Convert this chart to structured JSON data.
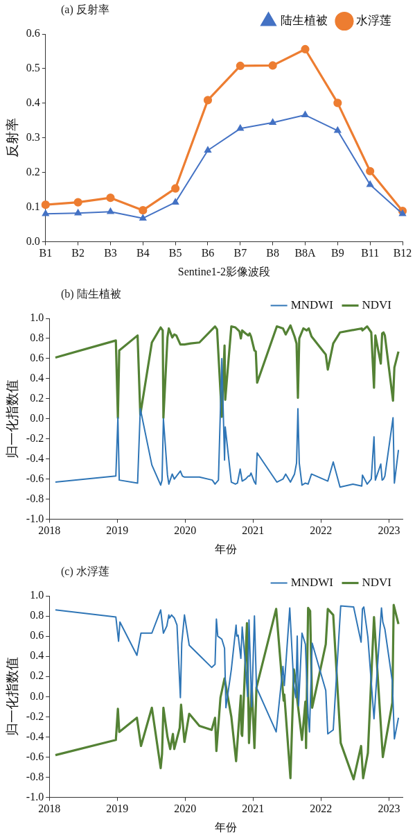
{
  "chart_data": [
    {
      "type": "line",
      "title": "(a) 反射率",
      "xlabel": "Sentine1-2影像波段",
      "ylabel": "反射率",
      "categories": [
        "B1",
        "B2",
        "B3",
        "B4",
        "B5",
        "B6",
        "B7",
        "B8",
        "B8A",
        "B9",
        "B11",
        "B12"
      ],
      "series": [
        {
          "name": "陆生植被",
          "color": "#4472c4",
          "marker": "triangle",
          "values": [
            0.081,
            0.083,
            0.087,
            0.068,
            0.114,
            0.264,
            0.327,
            0.344,
            0.366,
            0.321,
            0.165,
            0.081
          ]
        },
        {
          "name": "水浮莲",
          "color": "#ed7d31",
          "marker": "circle",
          "values": [
            0.107,
            0.114,
            0.127,
            0.091,
            0.154,
            0.409,
            0.508,
            0.509,
            0.556,
            0.401,
            0.204,
            0.089
          ]
        }
      ],
      "ylim": [
        0,
        0.6
      ],
      "yticks": [
        {
          "value": 0,
          "label": "0.0"
        },
        0.1,
        0.2,
        0.3,
        0.4,
        0.5,
        0.6
      ],
      "legend": "top right"
    },
    {
      "type": "line",
      "title": "(b) 陆生植被",
      "xlabel": "年份",
      "ylabel": "归一化指数值",
      "marker": "none",
      "series": [
        {
          "name": "MNDWI",
          "color": "#2e75b6",
          "x": [
            2018.09,
            2018.98,
            2019.01,
            2019.03,
            2019.3,
            2019.34,
            2019.51,
            2019.64,
            2019.66,
            2019.68,
            2019.74,
            2019.76,
            2019.81,
            2019.84,
            2019.93,
            2019.96,
            2019.99,
            2020.21,
            2020.4,
            2020.44,
            2020.49,
            2020.54,
            2020.58,
            2020.59,
            2020.68,
            2020.74,
            2020.77,
            2020.81,
            2020.84,
            2020.89,
            2020.93,
            2020.95,
            2020.97,
            2021.02,
            2021.04,
            2021.06,
            2021.35,
            2021.44,
            2021.48,
            2021.55,
            2021.61,
            2021.64,
            2021.66,
            2021.68,
            2021.72,
            2021.77,
            2021.81,
            2021.86,
            2022.1,
            2022.18,
            2022.28,
            2022.47,
            2022.6,
            2022.61,
            2022.68,
            2022.74,
            2022.78,
            2022.8,
            2022.88,
            2022.9,
            2022.92,
            2022.94,
            2023.06,
            2023.08,
            2023.14
          ],
          "values": [
            -0.63,
            -0.57,
            0.01,
            -0.61,
            -0.64,
            0.1,
            -0.46,
            -0.66,
            -0.61,
            0.0,
            -0.56,
            -0.65,
            -0.55,
            -0.6,
            -0.52,
            -0.57,
            -0.58,
            -0.58,
            -0.61,
            -0.65,
            -0.61,
            0.6,
            -0.41,
            -0.08,
            -0.63,
            -0.65,
            -0.64,
            -0.5,
            -0.62,
            -0.6,
            -0.57,
            -0.57,
            -0.54,
            -0.63,
            -0.65,
            -0.34,
            -0.63,
            -0.6,
            -0.55,
            -0.63,
            -0.55,
            -0.44,
            0.1,
            -0.44,
            -0.66,
            -0.64,
            -0.65,
            -0.55,
            -0.62,
            -0.43,
            -0.68,
            -0.65,
            -0.67,
            -0.56,
            -0.65,
            -0.6,
            -0.18,
            -0.61,
            -0.45,
            -0.61,
            -0.6,
            -0.57,
            0.01,
            -0.64,
            -0.31
          ]
        },
        {
          "name": "NDVI",
          "color": "#548235",
          "x": [
            2018.09,
            2018.98,
            2019.01,
            2019.03,
            2019.3,
            2019.34,
            2019.51,
            2019.64,
            2019.67,
            2019.68,
            2019.74,
            2019.76,
            2019.81,
            2019.84,
            2019.87,
            2019.93,
            2019.99,
            2020.08,
            2020.21,
            2020.44,
            2020.47,
            2020.54,
            2020.58,
            2020.59,
            2020.68,
            2020.74,
            2020.77,
            2020.8,
            2020.82,
            2020.84,
            2020.89,
            2020.93,
            2020.95,
            2020.97,
            2021.02,
            2021.04,
            2021.06,
            2021.35,
            2021.44,
            2021.48,
            2021.55,
            2021.61,
            2021.64,
            2021.66,
            2021.68,
            2021.74,
            2021.79,
            2021.82,
            2021.86,
            2022.07,
            2022.1,
            2022.18,
            2022.28,
            2022.6,
            2022.61,
            2022.68,
            2022.74,
            2022.78,
            2022.8,
            2022.88,
            2022.9,
            2022.92,
            2022.94,
            2023.06,
            2023.08,
            2023.14
          ],
          "values": [
            0.61,
            0.78,
            0.01,
            0.68,
            0.83,
            0.04,
            0.76,
            0.91,
            0.88,
            0.01,
            0.81,
            0.9,
            0.81,
            0.84,
            0.83,
            0.74,
            0.74,
            0.75,
            0.76,
            0.92,
            0.89,
            0.02,
            0.73,
            0.19,
            0.92,
            0.91,
            0.89,
            0.87,
            0.8,
            0.88,
            0.85,
            0.83,
            0.85,
            0.82,
            0.68,
            0.67,
            0.36,
            0.92,
            0.9,
            0.84,
            0.93,
            0.82,
            0.75,
            0.21,
            0.8,
            0.9,
            0.88,
            0.9,
            0.82,
            0.64,
            0.49,
            0.75,
            0.86,
            0.9,
            0.88,
            0.92,
            0.86,
            0.31,
            0.83,
            0.55,
            0.85,
            0.86,
            0.83,
            0.18,
            0.51,
            0.67
          ]
        }
      ],
      "xlim": [
        2018,
        2023.2
      ],
      "xticks": [
        2018,
        2019,
        2020,
        2021,
        2022,
        2023
      ],
      "ylim": [
        -1,
        1
      ],
      "yticks": [
        {
          "value": -1,
          "label": "-1.0"
        },
        -0.8,
        -0.6,
        -0.4,
        -0.2,
        {
          "value": 0,
          "label": "0.0"
        },
        0.2,
        0.4,
        0.6,
        0.8,
        {
          "value": 1,
          "label": "1.0"
        }
      ],
      "legend": "top right"
    },
    {
      "type": "line",
      "title": "(c) 水浮莲",
      "xlabel": "年份",
      "ylabel": "归一化指数值",
      "marker": "none",
      "series": [
        {
          "name": "MNDWI",
          "color": "#2e75b6",
          "x": [
            2018.09,
            2018.98,
            2019.02,
            2019.04,
            2019.29,
            2019.35,
            2019.51,
            2019.64,
            2019.68,
            2019.73,
            2019.76,
            2019.77,
            2019.8,
            2019.84,
            2019.88,
            2019.93,
            2019.95,
            2019.99,
            2020.06,
            2020.21,
            2020.39,
            2020.44,
            2020.46,
            2020.48,
            2020.54,
            2020.58,
            2020.6,
            2020.68,
            2020.75,
            2020.76,
            2020.78,
            2020.82,
            2020.84,
            2020.88,
            2020.92,
            2020.94,
            2020.98,
            2021.02,
            2021.05,
            2021.34,
            2021.44,
            2021.46,
            2021.54,
            2021.6,
            2021.63,
            2021.65,
            2021.67,
            2021.72,
            2021.77,
            2021.81,
            2021.83,
            2021.87,
            2022.07,
            2022.1,
            2022.18,
            2022.29,
            2022.48,
            2022.59,
            2022.61,
            2022.63,
            2022.69,
            2022.78,
            2022.89,
            2022.91,
            2022.94,
            2023.05,
            2023.08,
            2023.14
          ],
          "values": [
            0.86,
            0.79,
            0.55,
            0.74,
            0.41,
            0.63,
            0.63,
            0.86,
            0.63,
            0.7,
            0.81,
            0.78,
            0.81,
            0.78,
            0.71,
            -0.01,
            0.53,
            0.81,
            0.51,
            0.41,
            0.29,
            0.32,
            0.77,
            0.6,
            0.57,
            0.48,
            -0.11,
            0.27,
            0.71,
            0.6,
            0.61,
            0.38,
            0.69,
            0.38,
            0.0,
            0.76,
            -0.1,
            0.8,
            0.09,
            -0.35,
            0.3,
            0.11,
            0.88,
            0.11,
            -0.01,
            0.6,
            -0.09,
            0.63,
            0.52,
            -0.18,
            -0.35,
            0.53,
            0.06,
            -0.37,
            -0.33,
            0.9,
            0.89,
            0.54,
            0.87,
            0.89,
            0.59,
            -0.22,
            0.88,
            0.74,
            0.67,
            0.15,
            -0.42,
            -0.21
          ]
        },
        {
          "name": "NDVI",
          "color": "#548235",
          "x": [
            2018.09,
            2018.98,
            2019.01,
            2019.03,
            2019.29,
            2019.35,
            2019.51,
            2019.64,
            2019.66,
            2019.68,
            2019.74,
            2019.78,
            2019.82,
            2019.84,
            2019.92,
            2019.94,
            2019.99,
            2020.06,
            2020.21,
            2020.39,
            2020.44,
            2020.46,
            2020.52,
            2020.58,
            2020.68,
            2020.75,
            2020.82,
            2020.83,
            2020.84,
            2020.91,
            2020.94,
            2020.98,
            2021.02,
            2021.05,
            2021.34,
            2021.45,
            2021.46,
            2021.55,
            2021.6,
            2021.64,
            2021.65,
            2021.72,
            2021.77,
            2021.78,
            2021.81,
            2021.84,
            2021.87,
            2022.07,
            2022.1,
            2022.18,
            2022.29,
            2022.48,
            2022.59,
            2022.62,
            2022.69,
            2022.78,
            2022.91,
            2023.05,
            2023.07,
            2023.14
          ],
          "values": [
            -0.58,
            -0.43,
            -0.12,
            -0.35,
            -0.21,
            -0.49,
            -0.11,
            -0.71,
            -0.57,
            -0.11,
            -0.4,
            -0.52,
            -0.37,
            -0.52,
            -0.31,
            -0.08,
            -0.45,
            -0.17,
            -0.29,
            -0.33,
            -0.21,
            -0.54,
            -0.01,
            0.18,
            -0.2,
            -0.64,
            0.01,
            -0.37,
            -0.39,
            0.73,
            -0.46,
            0.11,
            -0.51,
            0.09,
            0.87,
            -0.04,
            0.02,
            -0.81,
            0.27,
            0.09,
            -0.03,
            -0.43,
            -0.05,
            -0.51,
            0.88,
            0.85,
            -0.11,
            0.52,
            0.87,
            0.81,
            -0.46,
            -0.82,
            -0.49,
            -0.81,
            -0.56,
            0.79,
            -0.6,
            -0.06,
            0.91,
            0.72
          ]
        }
      ],
      "xlim": [
        2018,
        2023.2
      ],
      "xticks": [
        2018,
        2019,
        2020,
        2021,
        2022,
        2023
      ],
      "ylim": [
        -1,
        1
      ],
      "yticks": [
        {
          "value": -1,
          "label": "-1.0"
        },
        -0.8,
        -0.6,
        -0.4,
        -0.2,
        {
          "value": 0,
          "label": "0.0"
        },
        0.2,
        0.4,
        0.6,
        0.8,
        {
          "value": 1,
          "label": "1.0"
        }
      ],
      "legend": "top right"
    }
  ]
}
